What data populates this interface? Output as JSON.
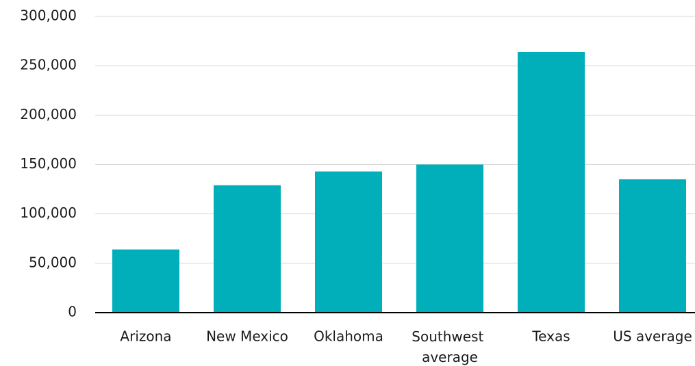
{
  "chart_data": {
    "type": "bar",
    "categories": [
      "Arizona",
      "New Mexico",
      "Oklahoma",
      "Southwest average",
      "Texas",
      "US average"
    ],
    "values": [
      64000,
      129000,
      143000,
      150000,
      264000,
      135000
    ],
    "color": "#00afb9",
    "ylim": [
      0,
      300000
    ],
    "yticks": [
      0,
      {
        "value": 50000,
        "label": "50,000"
      },
      {
        "value": 100000,
        "label": "100,000"
      },
      {
        "value": 150000,
        "label": "150,000"
      },
      {
        "value": 200000,
        "label": "200,000"
      },
      {
        "value": 250000,
        "label": "250,000"
      },
      {
        "value": 300000,
        "label": "300,000"
      }
    ],
    "grid": true
  }
}
